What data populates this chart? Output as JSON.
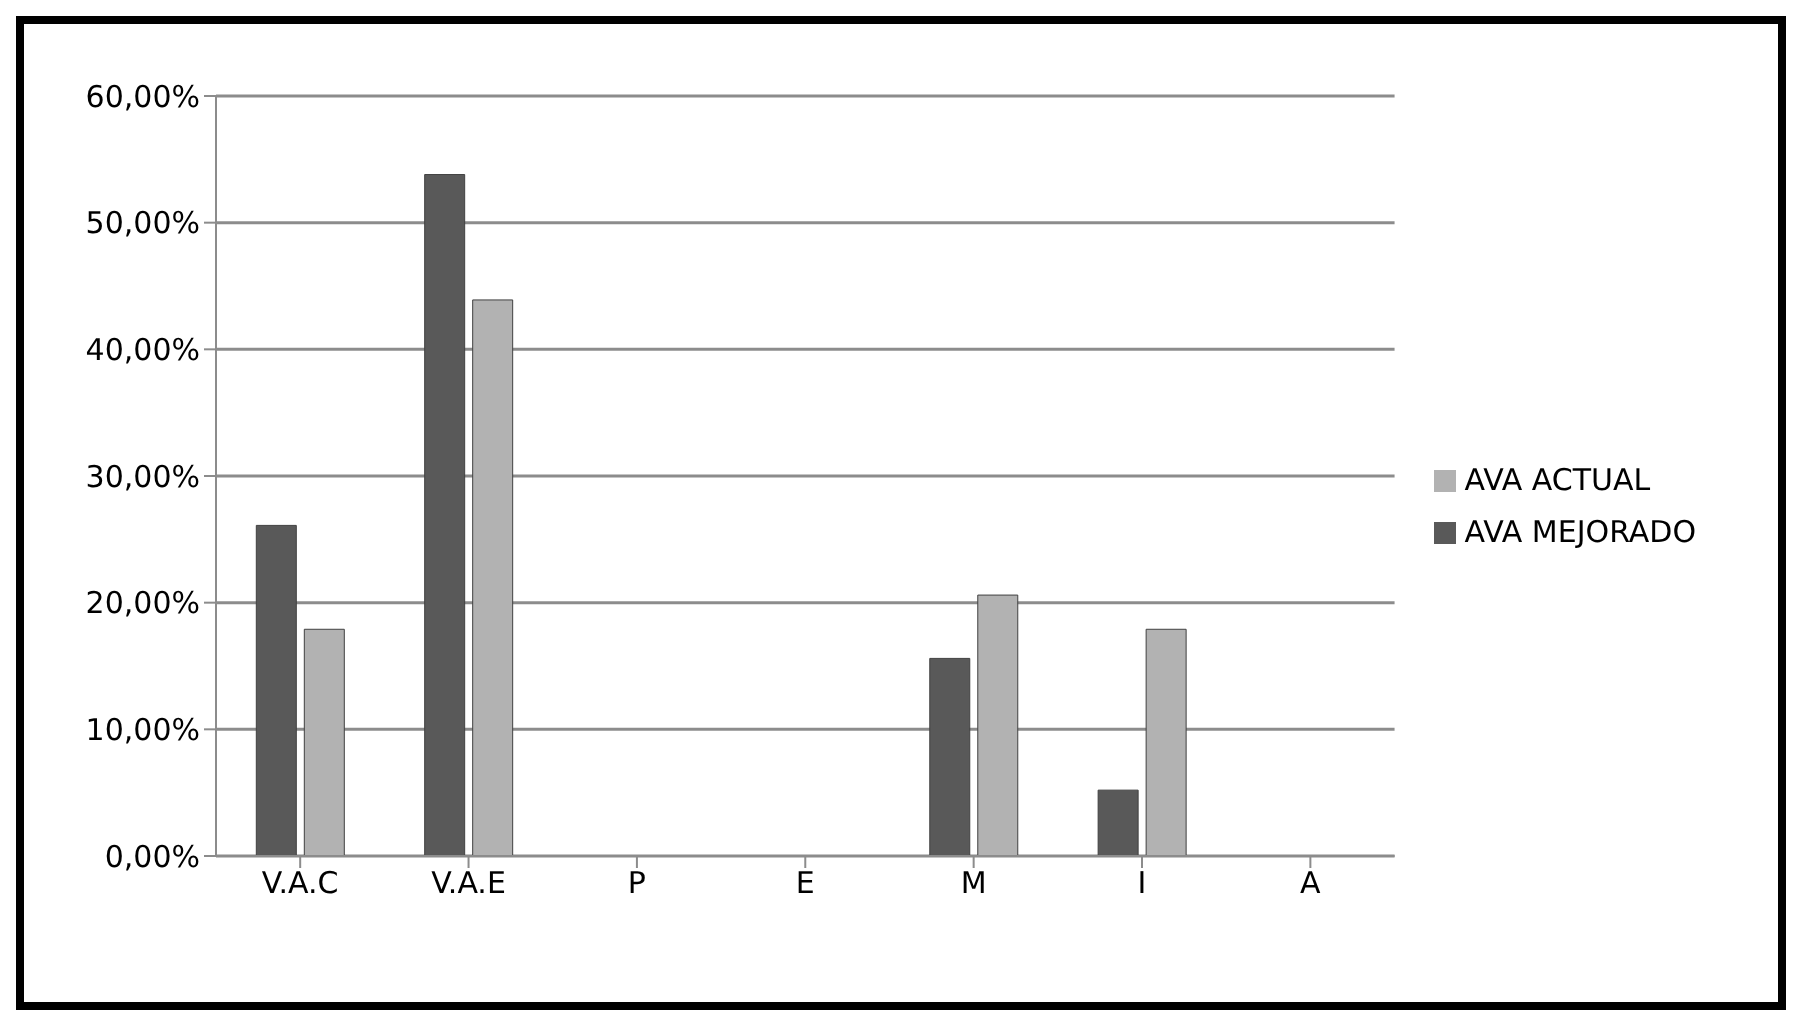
{
  "chart_data": {
    "type": "bar",
    "categories": [
      "V.A.C",
      "V.A.E",
      "P",
      "E",
      "M",
      "I",
      "A"
    ],
    "series": [
      {
        "name": "AVA MEJORADO",
        "color": "#595959",
        "values": [
          26.1,
          53.8,
          0,
          0,
          15.6,
          5.2,
          0
        ]
      },
      {
        "name": "AVA ACTUAL",
        "color": "#b2b2b2",
        "values": [
          17.9,
          43.9,
          0,
          0,
          20.6,
          17.9,
          0
        ]
      }
    ],
    "ylim": [
      0,
      60
    ],
    "yticks": [
      {
        "value": 0,
        "label": "0,00%"
      },
      {
        "value": 10,
        "label": "10,00%"
      },
      {
        "value": 20,
        "label": "20,00%"
      },
      {
        "value": 30,
        "label": "30,00%"
      },
      {
        "value": 40,
        "label": "40,00%"
      },
      {
        "value": 50,
        "label": "50,00%"
      },
      {
        "value": 60,
        "label": "60,00%"
      }
    ],
    "grid": "y",
    "legend": "right"
  }
}
